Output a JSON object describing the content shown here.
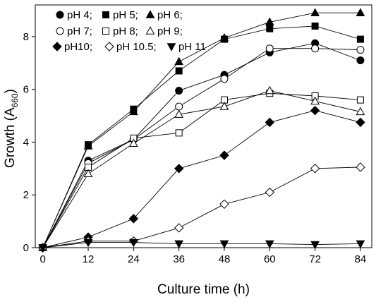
{
  "chart_data": {
    "type": "line",
    "xlabel": "Culture time (h)",
    "ylabel_main": "Growth (A",
    "ylabel_sub": "660",
    "ylabel_close": ")",
    "x": [
      0,
      12,
      24,
      36,
      48,
      60,
      72,
      84
    ],
    "x_ticks": [
      0,
      12,
      24,
      36,
      48,
      60,
      72,
      84
    ],
    "y_ticks": [
      0,
      2,
      4,
      6,
      8
    ],
    "xlim": [
      -2,
      87
    ],
    "ylim": [
      0,
      9.2
    ],
    "grid": false,
    "legend_position": "top-left",
    "legend_rows": [
      [
        "pH4",
        "pH5",
        "pH6"
      ],
      [
        "pH7",
        "pH8",
        "pH9"
      ],
      [
        "pH10",
        "pH10_5",
        "pH11"
      ]
    ],
    "series": [
      {
        "id": "pH4",
        "legend": "pH 4;",
        "marker": "circle",
        "fill": "#000000",
        "values": [
          0,
          3.3,
          4.1,
          5.95,
          6.55,
          7.4,
          7.75,
          7.1
        ]
      },
      {
        "id": "pH5",
        "legend": "pH 5;",
        "marker": "square",
        "fill": "#000000",
        "values": [
          0,
          3.9,
          5.25,
          6.7,
          7.9,
          8.3,
          8.4,
          7.9
        ]
      },
      {
        "id": "pH6",
        "legend": "pH 6;",
        "marker": "triangle-up",
        "fill": "#000000",
        "values": [
          0,
          3.85,
          5.15,
          7.05,
          7.95,
          8.55,
          8.9,
          8.9
        ]
      },
      {
        "id": "pH7",
        "legend": "pH 7;",
        "marker": "circle",
        "fill": "#ffffff",
        "values": [
          0,
          3.2,
          4.1,
          5.35,
          6.4,
          7.55,
          7.55,
          7.5
        ]
      },
      {
        "id": "pH8",
        "legend": "pH 8;",
        "marker": "square",
        "fill": "#ffffff",
        "values": [
          0,
          3.05,
          4.15,
          4.35,
          5.6,
          5.85,
          5.75,
          5.6
        ]
      },
      {
        "id": "pH9",
        "legend": "pH 9;",
        "marker": "triangle-up",
        "fill": "#ffffff",
        "values": [
          0,
          2.8,
          3.95,
          5.05,
          5.35,
          5.95,
          5.55,
          5.15
        ]
      },
      {
        "id": "pH10",
        "legend": "pH10;",
        "marker": "diamond",
        "fill": "#000000",
        "values": [
          0,
          0.4,
          1.1,
          3.0,
          3.5,
          4.75,
          5.2,
          4.75
        ]
      },
      {
        "id": "pH10_5",
        "legend": "pH 10.5;",
        "marker": "diamond",
        "fill": "#ffffff",
        "values": [
          0,
          0.25,
          0.25,
          0.75,
          1.65,
          2.1,
          3.0,
          3.05
        ]
      },
      {
        "id": "pH11",
        "legend": "pH 11",
        "marker": "triangle-down",
        "fill": "#000000",
        "values": [
          0,
          0.2,
          0.2,
          0.15,
          0.15,
          0.15,
          0.12,
          0.15
        ]
      }
    ]
  }
}
